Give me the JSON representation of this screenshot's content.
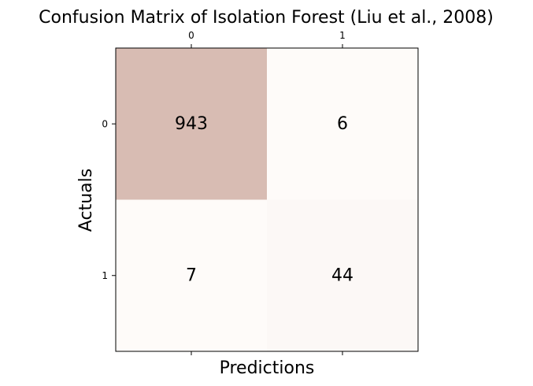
{
  "chart_data": {
    "type": "heatmap",
    "title": "Confusion Matrix of Isolation Forest (Liu et al., 2008)",
    "xlabel": "Predictions",
    "ylabel": "Actuals",
    "x_categories": [
      "0",
      "1"
    ],
    "y_categories": [
      "0",
      "1"
    ],
    "values": [
      [
        943,
        6
      ],
      [
        7,
        44
      ]
    ],
    "colormap": {
      "low": "#fefbf9",
      "high": "#d8bcb3"
    },
    "x_ticks_position": "top",
    "grid": false
  }
}
